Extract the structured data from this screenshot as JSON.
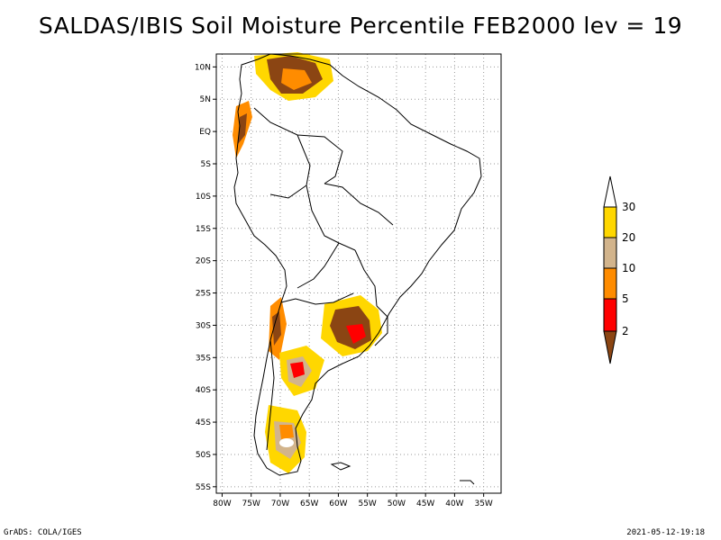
{
  "title": "SALDAS/IBIS Soil Moisture Percentile FEB2000 lev = 19",
  "footer": {
    "left": "GrADS: COLA/IGES",
    "right": "2021-05-12-19:18"
  },
  "map": {
    "lon_range": [
      -81,
      -32
    ],
    "lat_range": [
      -56,
      12
    ],
    "x_ticks": [
      {
        "value": -80,
        "label": "80W"
      },
      {
        "value": -75,
        "label": "75W"
      },
      {
        "value": -70,
        "label": "70W"
      },
      {
        "value": -65,
        "label": "65W"
      },
      {
        "value": -60,
        "label": "60W"
      },
      {
        "value": -55,
        "label": "55W"
      },
      {
        "value": -50,
        "label": "50W"
      },
      {
        "value": -45,
        "label": "45W"
      },
      {
        "value": -40,
        "label": "40W"
      },
      {
        "value": -35,
        "label": "35W"
      }
    ],
    "y_ticks": [
      {
        "value": 10,
        "label": "10N"
      },
      {
        "value": 5,
        "label": "5N"
      },
      {
        "value": 0,
        "label": "EQ"
      },
      {
        "value": -5,
        "label": "5S"
      },
      {
        "value": -10,
        "label": "10S"
      },
      {
        "value": -15,
        "label": "15S"
      },
      {
        "value": -20,
        "label": "20S"
      },
      {
        "value": -25,
        "label": "25S"
      },
      {
        "value": -30,
        "label": "30S"
      },
      {
        "value": -35,
        "label": "35S"
      },
      {
        "value": -40,
        "label": "40S"
      },
      {
        "value": -45,
        "label": "45S"
      },
      {
        "value": -50,
        "label": "50S"
      },
      {
        "value": -55,
        "label": "55S"
      }
    ],
    "grid": "dotted"
  },
  "legend": {
    "labels": [
      "2",
      "5",
      "10",
      "20",
      "30"
    ],
    "colors": {
      "below_2": "#8B4513",
      "2_5": "#FF0000",
      "5_10": "#FF8C00",
      "10_20": "#D2B48C",
      "20_30": "#FFD700",
      "above_30": "#FFFFFF"
    }
  }
}
